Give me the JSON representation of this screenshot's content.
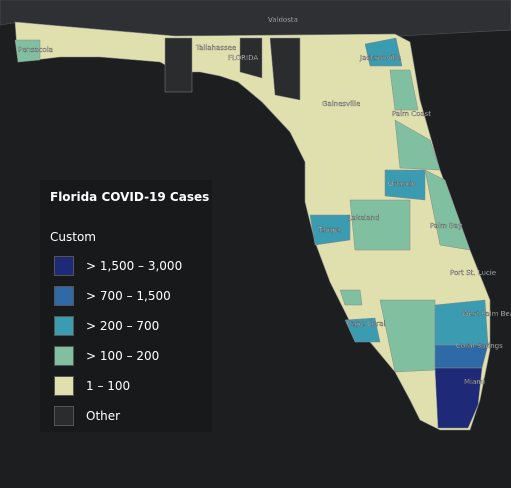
{
  "map": {
    "labels": [
      "Valdosta",
      "Tallahassee",
      "FLORIDA",
      "Pensacola",
      "Jacksonville",
      "Gainesville",
      "Palm Coast",
      "Orlando",
      "Lakeland",
      "Tampa",
      "Palm Bay",
      "Port St. Lucie",
      "West Palm Beach",
      "Cape Coral",
      "Coral Springs",
      "Miami"
    ]
  },
  "legend": {
    "title": "Florida COVID-19 Cases",
    "subtitle": "Custom",
    "items": [
      {
        "label": "> 1,500 – 3,000",
        "color": "#1e2a78"
      },
      {
        "label": "> 700 – 1,500",
        "color": "#2e6aa6"
      },
      {
        "label": "> 200 – 700",
        "color": "#3b9bb0"
      },
      {
        "label": "> 100 – 200",
        "color": "#80bf9f"
      },
      {
        "label": "1 – 100",
        "color": "#e0dfae"
      },
      {
        "label": "Other",
        "color": "#2b2c2e"
      }
    ]
  }
}
